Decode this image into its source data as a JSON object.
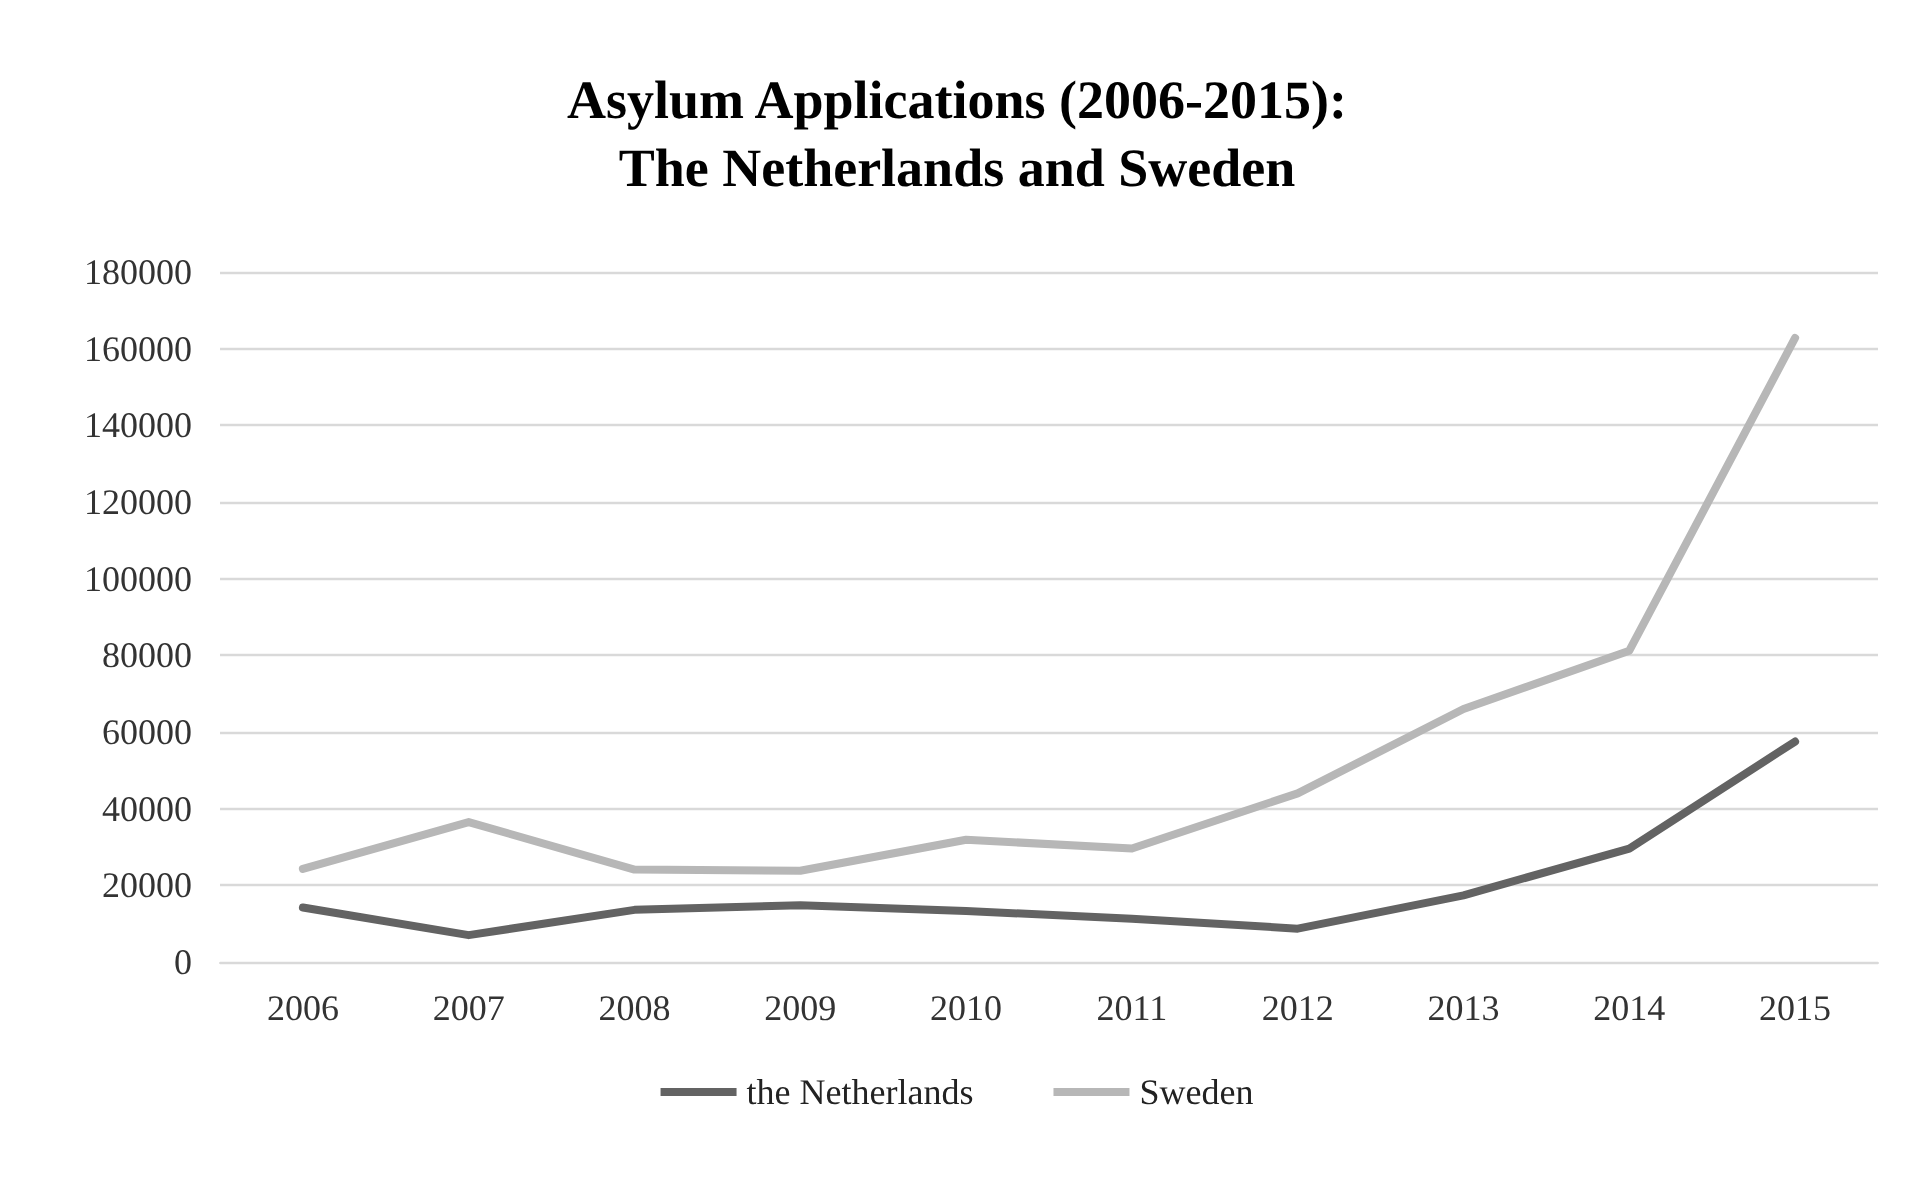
{
  "chart_data": {
    "type": "line",
    "title": "Asylum Applications (2006-2015):\nThe Netherlands and Sweden",
    "categories": [
      "2006",
      "2007",
      "2008",
      "2009",
      "2010",
      "2011",
      "2012",
      "2013",
      "2014",
      "2015"
    ],
    "series": [
      {
        "name": "the Netherlands",
        "color": "#636363",
        "values": [
          14200,
          7000,
          13600,
          14800,
          13300,
          11300,
          8700,
          17400,
          29600,
          57500
        ]
      },
      {
        "name": "Sweden",
        "color": "#b7b7b7",
        "values": [
          24300,
          36500,
          24100,
          23800,
          31900,
          29600,
          44000,
          66000,
          81200,
          162800
        ]
      }
    ],
    "ylim": [
      0,
      180000
    ],
    "yticks": [
      0,
      20000,
      40000,
      60000,
      80000,
      100000,
      120000,
      140000,
      160000,
      180000
    ],
    "grid": "y",
    "legend": "bottom",
    "marker": "none",
    "line_style": "solid"
  }
}
